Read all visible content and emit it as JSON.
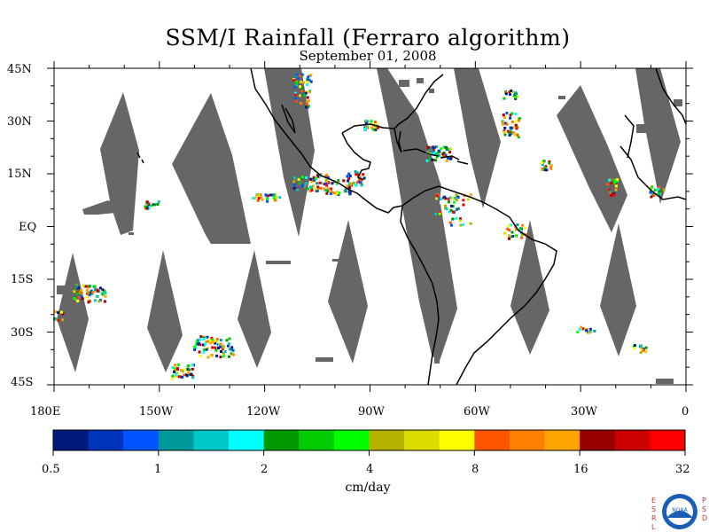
{
  "title": "SSM/I Rainfall (Ferraro algorithm)",
  "date": "September 01, 2008",
  "map": {
    "lat_labels": [
      "45N",
      "30N",
      "15N",
      "EQ",
      "15S",
      "30S",
      "45S"
    ],
    "lon_labels": [
      "180E",
      "150W",
      "120W",
      "90W",
      "60W",
      "30W",
      "0"
    ],
    "lat_range": [
      -45,
      45
    ],
    "lon_range": [
      -180,
      0
    ],
    "colors": {
      "land": "#ffffff",
      "no_data_swath_gap": "#666666",
      "coastline": "#000000"
    }
  },
  "colorbar": {
    "units": "cm/day",
    "tick_labels": [
      "0.5",
      "1",
      "2",
      "4",
      "8",
      "16",
      "32"
    ],
    "colors": [
      "#001a7a",
      "#0033bb",
      "#0055ff",
      "#00999a",
      "#00c8c8",
      "#00ffff",
      "#009900",
      "#00cc00",
      "#00ff00",
      "#b4b400",
      "#dcdc00",
      "#ffff00",
      "#ff5500",
      "#ff8000",
      "#ffa500",
      "#990000",
      "#cc0000",
      "#ff0000"
    ]
  },
  "logo": {
    "left_text": "ESRL",
    "right_text": "PSD",
    "badge": "NOAA"
  }
}
